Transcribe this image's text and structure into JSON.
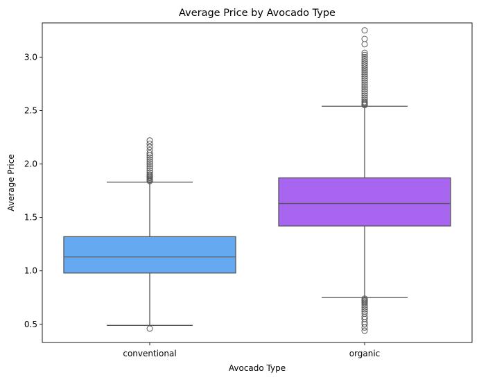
{
  "chart_data": {
    "type": "box",
    "title": "Average Price by Avocado Type",
    "xlabel": "Avocado Type",
    "ylabel": "Average Price",
    "ylim": [
      0.33,
      3.32
    ],
    "yticks": [
      0.5,
      1.0,
      1.5,
      2.0,
      2.5,
      3.0
    ],
    "ytick_labels": [
      "0.5",
      "1.0",
      "1.5",
      "2.0",
      "2.5",
      "3.0"
    ],
    "categories": [
      "conventional",
      "organic"
    ],
    "grid": false,
    "legend": "none",
    "boxes": [
      {
        "name": "conventional",
        "color": "#65aaf0",
        "whisker_low": 0.49,
        "q1": 0.98,
        "median": 1.13,
        "q3": 1.32,
        "whisker_high": 1.83,
        "outliers": [
          0.46,
          1.84,
          1.85,
          1.86,
          1.87,
          1.88,
          1.89,
          1.9,
          1.92,
          1.94,
          1.96,
          1.98,
          2.0,
          2.02,
          2.04,
          2.06,
          2.08,
          2.1,
          2.13,
          2.16,
          2.19,
          2.22
        ]
      },
      {
        "name": "organic",
        "color": "#a866f0",
        "whisker_low": 0.75,
        "q1": 1.42,
        "median": 1.63,
        "q3": 1.87,
        "whisker_high": 2.54,
        "outliers": [
          0.44,
          0.47,
          0.5,
          0.52,
          0.55,
          0.57,
          0.6,
          0.62,
          0.64,
          0.66,
          0.68,
          0.7,
          0.71,
          0.72,
          0.73,
          0.74,
          2.55,
          2.56,
          2.57,
          2.58,
          2.6,
          2.62,
          2.64,
          2.66,
          2.68,
          2.7,
          2.72,
          2.74,
          2.76,
          2.78,
          2.8,
          2.82,
          2.84,
          2.86,
          2.88,
          2.9,
          2.92,
          2.94,
          2.96,
          2.98,
          3.0,
          3.02,
          3.04,
          3.12,
          3.17,
          3.25
        ]
      }
    ]
  }
}
